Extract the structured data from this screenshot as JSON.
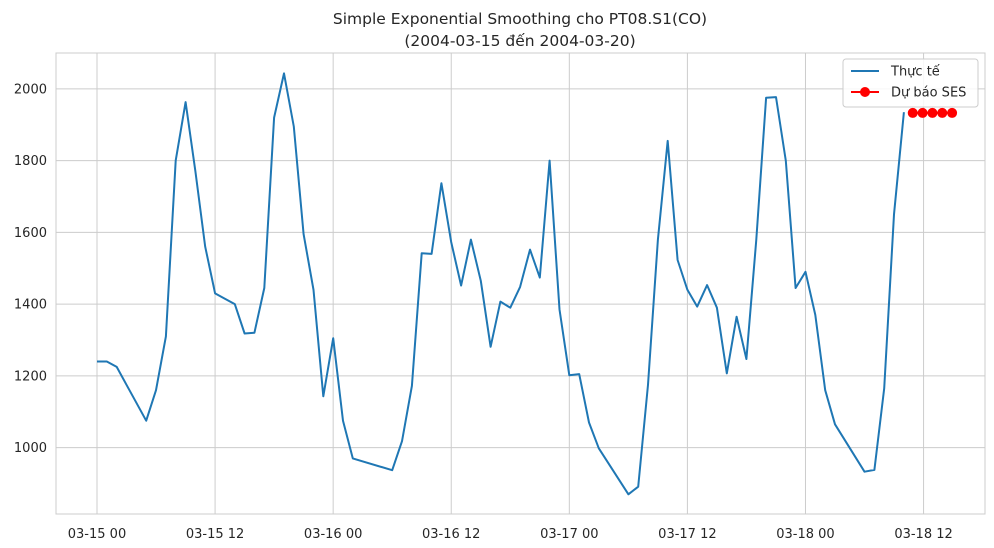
{
  "chart_data": {
    "type": "line",
    "title": "Simple Exponential Smoothing cho PT08.S1(CO)",
    "subtitle": "(2004-03-15 đến 2004-03-20)",
    "xlabel": "",
    "ylabel": "",
    "x_ticks": [
      "03-15 00",
      "03-15 12",
      "03-16 00",
      "03-16 12",
      "03-17 00",
      "03-17 12",
      "03-18 00",
      "03-18 12"
    ],
    "y_ticks": [
      "1000",
      "1200",
      "1400",
      "1600",
      "1800",
      "2000"
    ],
    "ylim": [
      815,
      2100
    ],
    "grid": true,
    "legend_position": "top-right",
    "series": [
      {
        "name": "Thực tế",
        "color": "#1f77b4",
        "marker": "none",
        "points": [
          [
            0,
            1240
          ],
          [
            1,
            1240
          ],
          [
            2,
            1225
          ],
          [
            3,
            1175
          ],
          [
            4,
            1125
          ],
          [
            5,
            1075
          ],
          [
            6,
            1160
          ],
          [
            7,
            1310
          ],
          [
            8,
            1800
          ],
          [
            9,
            1963
          ],
          [
            10,
            1770
          ],
          [
            11,
            1560
          ],
          [
            12,
            1430
          ],
          [
            13,
            1415
          ],
          [
            14,
            1400
          ],
          [
            15,
            1318
          ],
          [
            16,
            1320
          ],
          [
            17,
            1445
          ],
          [
            18,
            1920
          ],
          [
            19,
            2043
          ],
          [
            20,
            1895
          ],
          [
            21,
            1595
          ],
          [
            22,
            1440
          ],
          [
            23,
            1143
          ],
          [
            24,
            1305
          ],
          [
            25,
            1075
          ],
          [
            26,
            970
          ],
          [
            30,
            937
          ],
          [
            31,
            1018
          ],
          [
            32,
            1172
          ],
          [
            33,
            1542
          ],
          [
            34,
            1540
          ],
          [
            35,
            1737
          ],
          [
            36,
            1573
          ],
          [
            37,
            1452
          ],
          [
            38,
            1580
          ],
          [
            39,
            1465
          ],
          [
            40,
            1281
          ],
          [
            41,
            1407
          ],
          [
            42,
            1390
          ],
          [
            43,
            1448
          ],
          [
            44,
            1552
          ],
          [
            45,
            1474
          ],
          [
            46,
            1800
          ],
          [
            47,
            1385
          ],
          [
            48,
            1202
          ],
          [
            49,
            1205
          ],
          [
            50,
            1070
          ],
          [
            51,
            998
          ],
          [
            54,
            870
          ],
          [
            55,
            891
          ],
          [
            56,
            1175
          ],
          [
            57,
            1580
          ],
          [
            58,
            1855
          ],
          [
            59,
            1523
          ],
          [
            60,
            1440
          ],
          [
            61,
            1393
          ],
          [
            62,
            1453
          ],
          [
            63,
            1390
          ],
          [
            64,
            1207
          ],
          [
            65,
            1365
          ],
          [
            66,
            1247
          ],
          [
            67,
            1580
          ],
          [
            68,
            1975
          ],
          [
            69,
            1977
          ],
          [
            70,
            1800
          ],
          [
            71,
            1445
          ],
          [
            72,
            1490
          ],
          [
            73,
            1370
          ],
          [
            74,
            1160
          ],
          [
            75,
            1065
          ],
          [
            78,
            933
          ],
          [
            79,
            938
          ],
          [
            80,
            1165
          ],
          [
            81,
            1650
          ],
          [
            82,
            1935
          ]
        ]
      },
      {
        "name": "Dự báo SES",
        "color": "#ff0000",
        "marker": "circle",
        "points": [
          [
            82.9,
            1933
          ],
          [
            83.9,
            1933
          ],
          [
            84.9,
            1933
          ],
          [
            85.9,
            1933
          ],
          [
            86.9,
            1933
          ]
        ]
      }
    ]
  }
}
